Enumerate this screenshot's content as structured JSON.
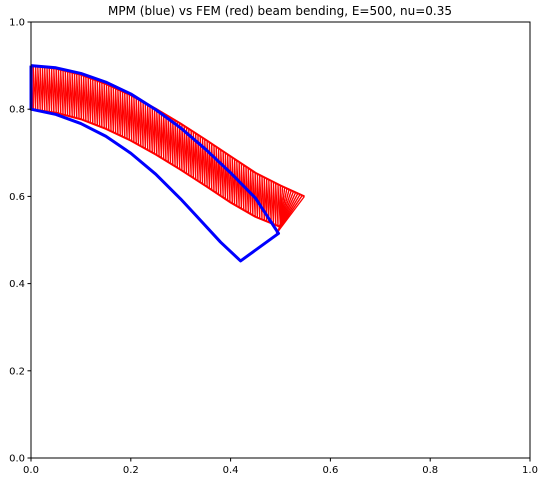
{
  "chart_data": {
    "type": "line",
    "title": "MPM (blue) vs FEM (red) beam bending, E=500, nu=0.35",
    "xlabel": "",
    "ylabel": "",
    "xlim": [
      0,
      1
    ],
    "ylim": [
      0,
      1
    ],
    "grid": false,
    "xticks": [
      "0.0",
      "0.2",
      "0.4",
      "0.6",
      "0.8",
      "1.0"
    ],
    "yticks": [
      "0.0",
      "0.2",
      "0.4",
      "0.6",
      "0.8",
      "1.0"
    ],
    "colors": {
      "mpm": "#0000ff",
      "fem": "#ff0000"
    },
    "series": [
      {
        "kind": "fem-mesh",
        "color": "#ff0000",
        "top_edge": [
          [
            0.0,
            0.9
          ],
          [
            0.05,
            0.893
          ],
          [
            0.1,
            0.879
          ],
          [
            0.15,
            0.858
          ],
          [
            0.2,
            0.832
          ],
          [
            0.25,
            0.801
          ],
          [
            0.3,
            0.767
          ],
          [
            0.35,
            0.73
          ],
          [
            0.4,
            0.692
          ],
          [
            0.45,
            0.654
          ],
          [
            0.5,
            0.625
          ],
          [
            0.548,
            0.6
          ]
        ],
        "bottom_edge": [
          [
            0.0,
            0.8
          ],
          [
            0.05,
            0.792
          ],
          [
            0.1,
            0.777
          ],
          [
            0.15,
            0.755
          ],
          [
            0.2,
            0.728
          ],
          [
            0.25,
            0.696
          ],
          [
            0.3,
            0.661
          ],
          [
            0.35,
            0.624
          ],
          [
            0.4,
            0.586
          ],
          [
            0.45,
            0.553
          ],
          [
            0.5,
            0.53
          ],
          [
            0.492,
            0.515
          ]
        ]
      },
      {
        "kind": "mpm-outline",
        "color": "#0000ff",
        "boundary": [
          [
            0.0,
            0.9
          ],
          [
            0.05,
            0.895
          ],
          [
            0.1,
            0.882
          ],
          [
            0.15,
            0.862
          ],
          [
            0.2,
            0.835
          ],
          [
            0.25,
            0.799
          ],
          [
            0.3,
            0.757
          ],
          [
            0.35,
            0.708
          ],
          [
            0.4,
            0.654
          ],
          [
            0.45,
            0.596
          ],
          [
            0.496,
            0.515
          ],
          [
            0.42,
            0.452
          ],
          [
            0.38,
            0.495
          ],
          [
            0.33,
            0.557
          ],
          [
            0.3,
            0.594
          ],
          [
            0.25,
            0.651
          ],
          [
            0.2,
            0.699
          ],
          [
            0.15,
            0.738
          ],
          [
            0.1,
            0.767
          ],
          [
            0.05,
            0.788
          ],
          [
            0.0,
            0.8
          ],
          [
            0.0,
            0.9
          ]
        ]
      }
    ]
  }
}
